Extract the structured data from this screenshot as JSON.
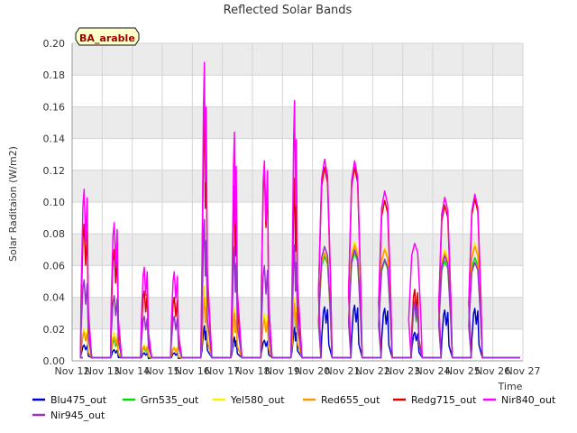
{
  "chart_data": {
    "type": "line",
    "title": "Reflected Solar Bands",
    "ylabel": "Solar Raditaion (W/m2)",
    "xlabel": "Time",
    "site_label": "BA_arable",
    "ylim": [
      0,
      0.2
    ],
    "xlim": [
      12,
      27
    ],
    "y_ticks": [
      "0.00",
      "0.02",
      "0.04",
      "0.06",
      "0.08",
      "0.10",
      "0.12",
      "0.14",
      "0.16",
      "0.18",
      "0.20"
    ],
    "x_ticks": [
      "Nov 12",
      "Nov 13",
      "Nov 14",
      "Nov 15",
      "Nov 16",
      "Nov 17",
      "Nov 18",
      "Nov 19",
      "Nov 20",
      "Nov 21",
      "Nov 22",
      "Nov 23",
      "Nov 24",
      "Nov 25",
      "Nov 26",
      "Nov 27"
    ],
    "baseline": 0.002,
    "days": [
      12.4,
      13.4,
      14.4,
      15.4,
      16.4,
      17.4,
      18.4,
      19.4,
      20.4,
      21.4,
      22.4,
      23.4,
      24.4,
      25.4,
      26.4
    ],
    "series": [
      {
        "name": "Blu475_out",
        "color": "#0000cc",
        "peaks": [
          0.01,
          0.007,
          0.005,
          0.005,
          0.022,
          0.015,
          0.013,
          0.021,
          0.034,
          0.035,
          0.033,
          0.018,
          0.032,
          0.033,
          0.0
        ]
      },
      {
        "name": "Grn535_out",
        "color": "#00dd00",
        "peaks": [
          0.018,
          0.013,
          0.008,
          0.008,
          0.045,
          0.03,
          0.028,
          0.035,
          0.066,
          0.068,
          0.063,
          0.035,
          0.063,
          0.065,
          0.0
        ]
      },
      {
        "name": "Yel580_out",
        "color": "#ffee00",
        "peaks": [
          0.02,
          0.018,
          0.01,
          0.009,
          0.047,
          0.034,
          0.03,
          0.04,
          0.072,
          0.075,
          0.071,
          0.04,
          0.07,
          0.074,
          0.0
        ]
      },
      {
        "name": "Red655_out",
        "color": "#ff9900",
        "peaks": [
          0.018,
          0.015,
          0.009,
          0.008,
          0.04,
          0.03,
          0.026,
          0.036,
          0.068,
          0.073,
          0.07,
          0.038,
          0.068,
          0.072,
          0.0
        ]
      },
      {
        "name": "Redg715_out",
        "color": "#dd0000",
        "peaks": [
          0.086,
          0.07,
          0.044,
          0.04,
          0.16,
          0.11,
          0.12,
          0.115,
          0.122,
          0.122,
          0.101,
          0.045,
          0.098,
          0.102,
          0.0
        ]
      },
      {
        "name": "Nir840_out",
        "color": "#ff00ff",
        "peaks": [
          0.108,
          0.087,
          0.059,
          0.056,
          0.188,
          0.144,
          0.126,
          0.164,
          0.127,
          0.126,
          0.107,
          0.074,
          0.103,
          0.105,
          0.0
        ]
      },
      {
        "name": "Nir945_out",
        "color": "#9933cc",
        "peaks": [
          0.051,
          0.041,
          0.028,
          0.028,
          0.089,
          0.072,
          0.06,
          0.073,
          0.072,
          0.07,
          0.064,
          0.037,
          0.066,
          0.062,
          0.0
        ]
      }
    ]
  }
}
